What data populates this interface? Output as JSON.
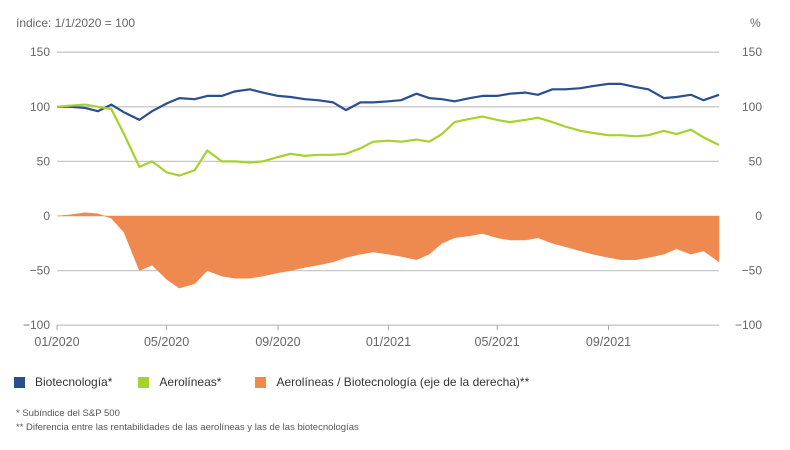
{
  "chart_data": {
    "type": "line",
    "title": "",
    "left_axis_label": "índice: 1/1/2020 = 100",
    "right_axis_label": "%",
    "ylim": [
      -100,
      150
    ],
    "yticks": [
      "150",
      "100",
      "50",
      "0",
      "−50",
      "−100"
    ],
    "ytick_values": [
      150,
      100,
      50,
      0,
      -50,
      -100
    ],
    "xticks": [
      "01/2020",
      "05/2020",
      "09/2020",
      "01/2021",
      "05/2021",
      "09/2021"
    ],
    "xtick_dates": [
      "2020-01-01",
      "2020-05-01",
      "2020-09-01",
      "2021-01-01",
      "2021-05-01",
      "2021-09-01"
    ],
    "xlim": [
      "2020-01-01",
      "2022-01-01"
    ],
    "grid": true,
    "legend_placement": "bottom",
    "x": [
      "2020-01-01",
      "2020-01-15",
      "2020-02-01",
      "2020-02-15",
      "2020-03-01",
      "2020-03-15",
      "2020-04-01",
      "2020-04-15",
      "2020-05-01",
      "2020-05-15",
      "2020-06-01",
      "2020-06-15",
      "2020-07-01",
      "2020-07-15",
      "2020-08-01",
      "2020-08-15",
      "2020-09-01",
      "2020-09-15",
      "2020-10-01",
      "2020-10-15",
      "2020-11-01",
      "2020-11-15",
      "2020-12-01",
      "2020-12-15",
      "2021-01-01",
      "2021-01-15",
      "2021-02-01",
      "2021-02-15",
      "2021-03-01",
      "2021-03-15",
      "2021-04-01",
      "2021-04-15",
      "2021-05-01",
      "2021-05-15",
      "2021-06-01",
      "2021-06-15",
      "2021-07-01",
      "2021-07-15",
      "2021-08-01",
      "2021-08-15",
      "2021-09-01",
      "2021-09-15",
      "2021-10-01",
      "2021-10-15",
      "2021-11-01",
      "2021-11-15",
      "2021-12-01",
      "2021-12-15",
      "2022-01-01"
    ],
    "series": [
      {
        "name": "Biotecnología*",
        "type": "line",
        "color": "#2b4f8e",
        "values": [
          100,
          100,
          99,
          96,
          102,
          95,
          88,
          96,
          103,
          108,
          107,
          110,
          110,
          114,
          116,
          113,
          110,
          109,
          107,
          106,
          104,
          97,
          104,
          104,
          105,
          106,
          112,
          108,
          107,
          105,
          108,
          110,
          110,
          112,
          113,
          111,
          116,
          116,
          117,
          119,
          121,
          121,
          118,
          116,
          108,
          109,
          111,
          106,
          111
        ]
      },
      {
        "name": "Aerolíneas*",
        "type": "line",
        "color": "#a6d22e",
        "values": [
          100,
          101,
          102,
          100,
          98,
          75,
          45,
          50,
          40,
          37,
          42,
          60,
          50,
          50,
          49,
          50,
          54,
          57,
          55,
          56,
          56,
          57,
          62,
          68,
          69,
          68,
          70,
          68,
          75,
          86,
          89,
          91,
          88,
          86,
          88,
          90,
          86,
          82,
          78,
          76,
          74,
          74,
          73,
          74,
          78,
          75,
          79,
          72,
          65
        ]
      },
      {
        "name": "Aerolíneas / Biotecnología (eje de la derecha)**",
        "type": "area",
        "color": "#ee8a4f",
        "values": [
          0,
          1,
          3,
          2,
          -2,
          -15,
          -50,
          -45,
          -58,
          -66,
          -62,
          -50,
          -55,
          -57,
          -57,
          -55,
          -52,
          -50,
          -47,
          -45,
          -42,
          -38,
          -35,
          -33,
          -35,
          -37,
          -40,
          -35,
          -25,
          -20,
          -18,
          -16,
          -20,
          -22,
          -22,
          -20,
          -25,
          -28,
          -32,
          -35,
          -38,
          -40,
          -40,
          -38,
          -35,
          -30,
          -35,
          -32,
          -42
        ]
      }
    ]
  },
  "footnotes": [
    "* Subíndice del S&P 500",
    "** Diferencia entre las rentabilidades de las aerolíneas y las de las biotecnologías"
  ]
}
